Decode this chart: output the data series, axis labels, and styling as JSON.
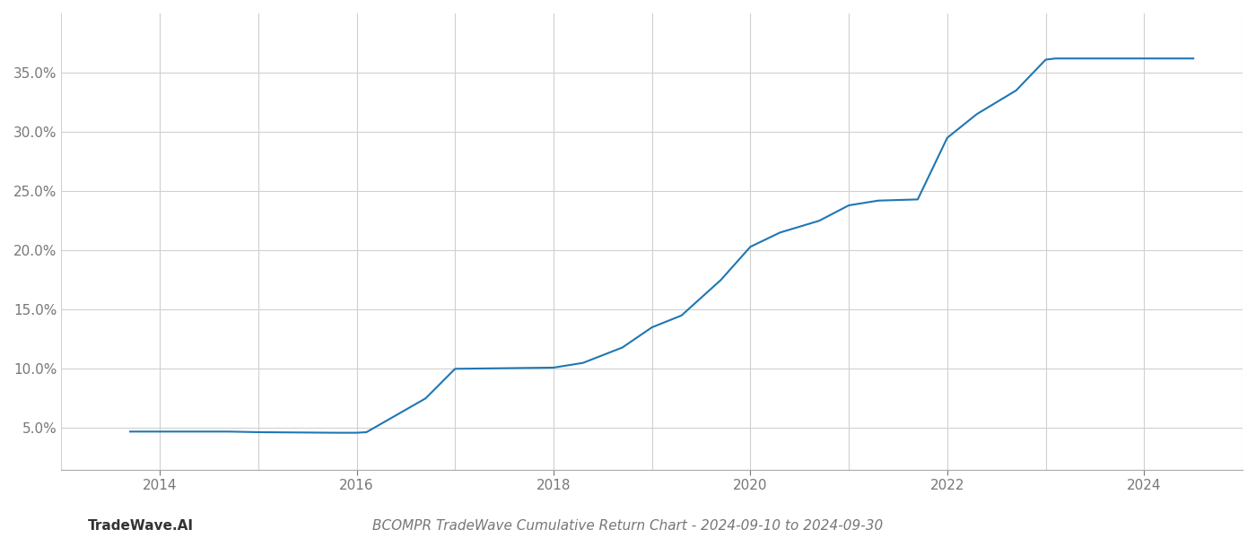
{
  "x_values": [
    2013.7,
    2014.0,
    2014.7,
    2015.0,
    2015.8,
    2016.0,
    2016.1,
    2016.7,
    2017.0,
    2017.5,
    2018.0,
    2018.3,
    2018.7,
    2019.0,
    2019.3,
    2019.7,
    2020.0,
    2020.3,
    2020.7,
    2021.0,
    2021.3,
    2021.7,
    2022.0,
    2022.3,
    2022.7,
    2023.0,
    2023.1,
    2023.5,
    2024.0,
    2024.5
  ],
  "y_values": [
    4.7,
    4.7,
    4.7,
    4.65,
    4.6,
    4.6,
    4.65,
    7.5,
    10.0,
    10.05,
    10.1,
    10.5,
    11.8,
    13.5,
    14.5,
    17.5,
    20.3,
    21.5,
    22.5,
    23.8,
    24.2,
    24.3,
    29.5,
    31.5,
    33.5,
    36.1,
    36.2,
    36.2,
    36.2,
    36.2
  ],
  "line_color": "#1f77b4",
  "line_width": 1.5,
  "background_color": "#ffffff",
  "grid_color": "#d0d0d0",
  "title": "BCOMPR TradeWave Cumulative Return Chart - 2024-09-10 to 2024-09-30",
  "watermark": "TradeWave.AI",
  "xlim": [
    2013.55,
    2024.9
  ],
  "ylim": [
    1.5,
    40.0
  ],
  "yticks": [
    5.0,
    10.0,
    15.0,
    20.0,
    25.0,
    30.0,
    35.0
  ],
  "xticks": [
    2014,
    2016,
    2018,
    2020,
    2022,
    2024
  ],
  "x_minor_ticks": [
    2013,
    2015,
    2017,
    2019,
    2021,
    2023,
    2025
  ],
  "title_fontsize": 11,
  "watermark_fontsize": 11,
  "tick_fontsize": 11,
  "axis_color": "#777777"
}
